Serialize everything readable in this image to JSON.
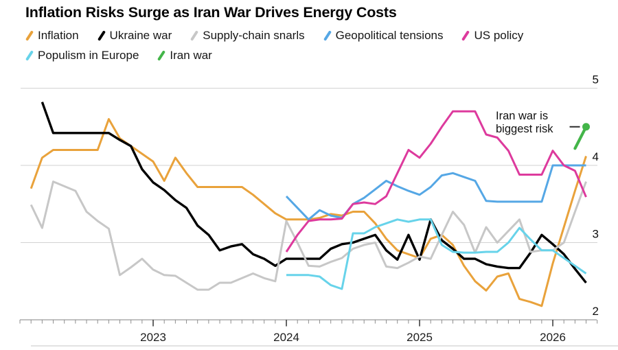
{
  "chart_data": {
    "type": "line",
    "title": "Inflation Risks Surge as Iran War Drives Energy Costs",
    "x_axis": {
      "unit": "month",
      "start": "2022-02",
      "end": "2026-04",
      "total_months": 51,
      "year_ticks": [
        {
          "label": "2023",
          "month_index": 11
        },
        {
          "label": "2024",
          "month_index": 23
        },
        {
          "label": "2025",
          "month_index": 35
        },
        {
          "label": "2026",
          "month_index": 47
        }
      ]
    },
    "y_axis": {
      "min": 2,
      "max": 5,
      "tick_values": [
        5,
        4,
        3,
        2
      ],
      "side": "right",
      "gridlines": true
    },
    "annotation": {
      "line1": "Iran war is",
      "line2": "biggest risk",
      "target_series": "Iran war"
    },
    "legend_rows": [
      [
        0,
        1,
        2,
        3,
        4
      ],
      [
        5,
        6
      ]
    ],
    "series": [
      {
        "name": "Inflation",
        "color": "#E9A23B",
        "line_width": 3,
        "start_month_index": 0,
        "values": [
          3.7,
          4.1,
          4.2,
          4.2,
          4.2,
          4.2,
          4.2,
          4.6,
          4.35,
          4.25,
          4.15,
          4.05,
          3.8,
          4.1,
          3.9,
          3.72,
          3.72,
          3.72,
          3.72,
          3.72,
          3.62,
          3.5,
          3.38,
          3.3,
          3.3,
          3.3,
          3.32,
          3.37,
          3.35,
          3.4,
          3.4,
          3.25,
          3.05,
          2.9,
          2.85,
          2.8,
          3.05,
          3.1,
          2.97,
          2.7,
          2.5,
          2.38,
          2.56,
          2.6,
          2.27,
          2.23,
          2.18,
          2.73,
          3.2,
          3.67,
          4.12
        ]
      },
      {
        "name": "Ukraine war",
        "color": "#000000",
        "line_width": 3.4,
        "start_month_index": 1,
        "values": [
          4.82,
          4.42,
          4.42,
          4.42,
          4.42,
          4.42,
          4.42,
          4.33,
          4.25,
          3.95,
          3.78,
          3.68,
          3.55,
          3.45,
          3.22,
          3.1,
          2.9,
          2.95,
          2.98,
          2.85,
          2.79,
          2.7,
          2.79,
          2.79,
          2.79,
          2.79,
          2.92,
          2.98,
          3.0,
          3.05,
          3.1,
          2.9,
          2.78,
          3.1,
          2.78,
          3.3,
          3.03,
          2.92,
          2.79,
          2.79,
          2.72,
          2.69,
          2.67,
          2.67,
          2.87,
          3.1,
          2.98,
          2.85,
          2.66,
          2.48
        ]
      },
      {
        "name": "Supply-chain snarls",
        "color": "#C7C7C7",
        "line_width": 3,
        "start_month_index": 0,
        "values": [
          3.49,
          3.19,
          3.79,
          3.73,
          3.67,
          3.4,
          3.28,
          3.18,
          2.58,
          2.68,
          2.79,
          2.65,
          2.58,
          2.57,
          2.48,
          2.39,
          2.39,
          2.48,
          2.48,
          2.54,
          2.6,
          2.54,
          2.5,
          3.28,
          3.0,
          2.7,
          2.69,
          2.75,
          2.8,
          2.92,
          2.97,
          3.0,
          2.69,
          2.67,
          2.74,
          2.82,
          2.79,
          3.1,
          3.4,
          3.23,
          2.87,
          3.2,
          3.0,
          3.15,
          3.3,
          2.88,
          2.9,
          2.9,
          3.0,
          3.4,
          3.79
        ]
      },
      {
        "name": "Geopolitical tensions",
        "color": "#55A7E5",
        "line_width": 3,
        "start_month_index": 23,
        "values": [
          3.6,
          3.45,
          3.3,
          3.42,
          3.35,
          3.32,
          3.5,
          3.58,
          3.69,
          3.8,
          3.73,
          3.67,
          3.62,
          3.72,
          3.87,
          3.9,
          3.85,
          3.8,
          3.54,
          3.53,
          3.53,
          3.53,
          3.53,
          3.53,
          4.0,
          4.0,
          4.0,
          4.0
        ]
      },
      {
        "name": "US policy",
        "color": "#DD3A9D",
        "line_width": 3,
        "start_month_index": 23,
        "values": [
          2.88,
          3.1,
          3.28,
          3.3,
          3.3,
          3.31,
          3.5,
          3.52,
          3.5,
          3.6,
          3.9,
          4.2,
          4.1,
          4.28,
          4.5,
          4.7,
          4.7,
          4.7,
          4.4,
          4.36,
          4.19,
          3.88,
          3.88,
          3.88,
          4.19,
          4.0,
          3.93,
          3.59
        ]
      },
      {
        "name": "Populism in Europe",
        "color": "#67D3EA",
        "line_width": 3,
        "start_month_index": 23,
        "values": [
          2.58,
          2.58,
          2.58,
          2.56,
          2.45,
          2.4,
          3.12,
          3.12,
          3.2,
          3.25,
          3.3,
          3.27,
          3.3,
          3.3,
          2.97,
          2.88,
          2.87,
          2.87,
          2.88,
          2.88,
          3.0,
          3.19,
          3.04,
          2.9,
          2.9,
          2.8,
          2.7,
          2.6
        ]
      },
      {
        "name": "Iran war",
        "color": "#43B549",
        "line_width": 4.2,
        "start_month_index": 49,
        "end_dot": true,
        "values": [
          4.22,
          4.5
        ]
      }
    ]
  }
}
